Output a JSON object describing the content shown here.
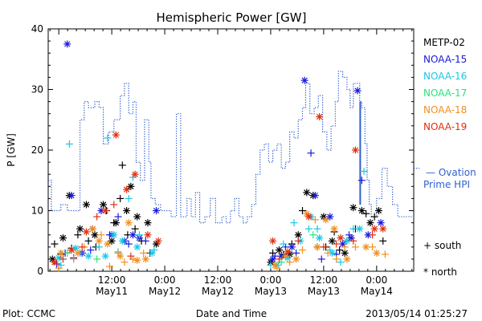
{
  "chart_data": {
    "type": "scatter",
    "title": "Hemispheric Power [GW]",
    "ylabel": "P [GW]",
    "xlabel": "Date and Time",
    "ylim": [
      0,
      40
    ],
    "xlim": [
      -0.1,
      3.35
    ],
    "yticks": [
      0,
      10,
      20,
      30,
      40
    ],
    "xticks": [
      {
        "x": 0.5,
        "time": "12:00",
        "date": "May11"
      },
      {
        "x": 1.0,
        "time": "0:00",
        "date": "May12"
      },
      {
        "x": 1.5,
        "time": "12:00",
        "date": "May12"
      },
      {
        "x": 2.0,
        "time": "0:00",
        "date": "May13"
      },
      {
        "x": 2.5,
        "time": "12:00",
        "date": "May13"
      },
      {
        "x": 3.0,
        "time": "0:00",
        "date": "May14"
      }
    ],
    "legend": {
      "placement": "right",
      "entries": [
        {
          "name": "METP-02",
          "color": "#000000"
        },
        {
          "name": "NOAA-15",
          "color": "#1a1adc"
        },
        {
          "name": "NOAA-16",
          "color": "#18c8e8"
        },
        {
          "name": "NOAA-17",
          "color": "#22e878"
        },
        {
          "name": "NOAA-18",
          "color": "#f09020"
        },
        {
          "name": "NOAA-19",
          "color": "#e03010"
        }
      ],
      "ovation_label_1": "— Ovation",
      "ovation_label_2": "Prime HPI",
      "ovation_color": "#3060d0",
      "south_label": "+ south",
      "north_label": "* north"
    },
    "ovation_series": {
      "name": "Ovation Prime HPI",
      "style": "dotted-step",
      "points": [
        [
          -0.1,
          15
        ],
        [
          -0.07,
          10
        ],
        [
          -0.02,
          10
        ],
        [
          0.02,
          11
        ],
        [
          0.08,
          10
        ],
        [
          0.16,
          10
        ],
        [
          0.2,
          25
        ],
        [
          0.24,
          28
        ],
        [
          0.28,
          27
        ],
        [
          0.34,
          28
        ],
        [
          0.38,
          27
        ],
        [
          0.42,
          21
        ],
        [
          0.47,
          23
        ],
        [
          0.52,
          25
        ],
        [
          0.58,
          29
        ],
        [
          0.62,
          31
        ],
        [
          0.66,
          26
        ],
        [
          0.7,
          28
        ],
        [
          0.73,
          18
        ],
        [
          0.77,
          15
        ],
        [
          0.81,
          25
        ],
        [
          0.85,
          18
        ],
        [
          0.87,
          12
        ],
        [
          0.91,
          11
        ],
        [
          0.96,
          10
        ],
        [
          1.0,
          10
        ],
        [
          1.06,
          9
        ],
        [
          1.11,
          26
        ],
        [
          1.15,
          9
        ],
        [
          1.21,
          12
        ],
        [
          1.25,
          9
        ],
        [
          1.29,
          13
        ],
        [
          1.33,
          8
        ],
        [
          1.38,
          9
        ],
        [
          1.43,
          12
        ],
        [
          1.48,
          8
        ],
        [
          1.54,
          9
        ],
        [
          1.58,
          8
        ],
        [
          1.62,
          10
        ],
        [
          1.66,
          12
        ],
        [
          1.7,
          9
        ],
        [
          1.74,
          8
        ],
        [
          1.78,
          9
        ],
        [
          1.82,
          11
        ],
        [
          1.86,
          16
        ],
        [
          1.9,
          20
        ],
        [
          1.94,
          21
        ],
        [
          1.98,
          18
        ],
        [
          2.02,
          20
        ],
        [
          2.06,
          21
        ],
        [
          2.1,
          17
        ],
        [
          2.14,
          18
        ],
        [
          2.18,
          23
        ],
        [
          2.22,
          22
        ],
        [
          2.26,
          25
        ],
        [
          2.3,
          27
        ],
        [
          2.33,
          31
        ],
        [
          2.37,
          26
        ],
        [
          2.41,
          27
        ],
        [
          2.45,
          29
        ],
        [
          2.49,
          23
        ],
        [
          2.53,
          20
        ],
        [
          2.57,
          24
        ],
        [
          2.61,
          28
        ],
        [
          2.64,
          33
        ],
        [
          2.68,
          32
        ],
        [
          2.72,
          30
        ],
        [
          2.75,
          27
        ],
        [
          2.78,
          31
        ],
        [
          2.82,
          31
        ],
        [
          2.84,
          28
        ],
        [
          2.86,
          27
        ],
        [
          2.89,
          21
        ],
        [
          2.91,
          15
        ],
        [
          2.93,
          11
        ],
        [
          2.95,
          9
        ],
        [
          3.0,
          12
        ],
        [
          3.05,
          17
        ],
        [
          3.1,
          14
        ],
        [
          3.15,
          11
        ],
        [
          3.2,
          9
        ]
      ],
      "spike": {
        "x": 2.845,
        "y_from": 11,
        "y_to": 28
      }
    },
    "series": [
      {
        "satellite": "METP-02",
        "color": "#000000",
        "south": [
          [
            -0.04,
            4.5
          ],
          [
            0.02,
            2.8
          ],
          [
            0.12,
            3.8
          ],
          [
            0.18,
            6
          ],
          [
            0.28,
            5
          ],
          [
            0.35,
            4
          ],
          [
            0.45,
            10
          ],
          [
            0.52,
            8
          ],
          [
            0.58,
            12
          ],
          [
            0.6,
            17.5
          ],
          [
            0.65,
            6
          ],
          [
            0.72,
            7
          ],
          [
            0.78,
            5
          ],
          [
            0.86,
            3
          ],
          [
            2.02,
            3
          ],
          [
            2.12,
            2.8
          ],
          [
            2.2,
            4.5
          ],
          [
            2.3,
            10
          ],
          [
            2.44,
            4
          ],
          [
            2.52,
            4
          ],
          [
            2.6,
            6.5
          ],
          [
            2.65,
            3.5
          ],
          [
            2.72,
            5
          ],
          [
            2.8,
            7
          ],
          [
            2.9,
            9.5
          ],
          [
            2.98,
            9
          ],
          [
            3.06,
            5
          ]
        ],
        "north": [
          [
            -0.06,
            2
          ],
          [
            0.04,
            5.5
          ],
          [
            0.1,
            12.5
          ],
          [
            0.2,
            7
          ],
          [
            0.26,
            11
          ],
          [
            0.34,
            6
          ],
          [
            0.42,
            11
          ],
          [
            0.5,
            5
          ],
          [
            0.54,
            8
          ],
          [
            0.64,
            10
          ],
          [
            0.68,
            14
          ],
          [
            0.74,
            9
          ],
          [
            0.84,
            8
          ],
          [
            0.92,
            4.5
          ],
          [
            2.0,
            1.5
          ],
          [
            2.08,
            3.5
          ],
          [
            2.18,
            2.8
          ],
          [
            2.26,
            6
          ],
          [
            2.34,
            13
          ],
          [
            2.4,
            12.5
          ],
          [
            2.5,
            9
          ],
          [
            2.58,
            5
          ],
          [
            2.7,
            3
          ],
          [
            2.78,
            10.5
          ],
          [
            2.86,
            10
          ],
          [
            2.94,
            8
          ],
          [
            3.02,
            10
          ]
        ]
      },
      {
        "satellite": "NOAA-15",
        "color": "#1a1adc",
        "south": [
          [
            -0.02,
            1.2
          ],
          [
            0.06,
            3
          ],
          [
            0.14,
            2.2
          ],
          [
            0.3,
            3.5
          ],
          [
            0.48,
            6
          ],
          [
            0.56,
            9
          ],
          [
            0.66,
            4.5
          ],
          [
            0.82,
            5
          ],
          [
            2.04,
            2.5
          ],
          [
            2.14,
            4
          ],
          [
            2.24,
            3
          ],
          [
            2.38,
            19.5
          ],
          [
            2.48,
            2
          ],
          [
            2.62,
            2.8
          ],
          [
            2.74,
            6
          ],
          [
            2.86,
            15
          ]
        ],
        "north": [
          [
            0.08,
            37.5
          ],
          [
            0.12,
            12.5
          ],
          [
            0.22,
            3
          ],
          [
            0.32,
            7
          ],
          [
            0.4,
            10
          ],
          [
            0.5,
            6
          ],
          [
            0.62,
            5
          ],
          [
            0.7,
            6
          ],
          [
            0.76,
            5.5
          ],
          [
            0.92,
            10
          ],
          [
            2.02,
            2
          ],
          [
            2.1,
            2.5
          ],
          [
            2.2,
            4
          ],
          [
            2.32,
            31.5
          ],
          [
            2.42,
            12.5
          ],
          [
            2.56,
            9
          ],
          [
            2.68,
            4.5
          ],
          [
            2.76,
            5.5
          ],
          [
            2.82,
            29.8
          ],
          [
            2.92,
            6
          ],
          [
            3.04,
            8
          ]
        ]
      },
      {
        "satellite": "NOAA-16",
        "color": "#18c8e8",
        "south": [
          [
            0.02,
            1
          ],
          [
            0.1,
            21
          ],
          [
            0.2,
            3
          ],
          [
            0.38,
            4
          ],
          [
            0.46,
            22
          ],
          [
            0.56,
            3.2
          ],
          [
            0.66,
            12
          ],
          [
            0.7,
            15.5
          ],
          [
            0.76,
            6
          ],
          [
            0.9,
            3.5
          ],
          [
            2.0,
            1
          ],
          [
            2.12,
            4.5
          ],
          [
            2.22,
            8
          ],
          [
            2.36,
            7
          ],
          [
            2.44,
            7
          ],
          [
            2.56,
            3.5
          ],
          [
            2.66,
            1.5
          ],
          [
            2.78,
            7
          ],
          [
            2.88,
            16.5
          ]
        ],
        "north": [
          [
            0.0,
            2.2
          ],
          [
            0.16,
            3.8
          ],
          [
            0.28,
            2.5
          ],
          [
            0.44,
            2.5
          ],
          [
            0.52,
            6
          ],
          [
            0.6,
            5
          ],
          [
            0.74,
            4
          ],
          [
            0.88,
            3
          ],
          [
            2.06,
            1
          ],
          [
            2.16,
            2.2
          ],
          [
            2.28,
            5
          ],
          [
            2.38,
            9
          ],
          [
            2.46,
            5.5
          ],
          [
            2.58,
            3
          ],
          [
            2.72,
            5
          ],
          [
            2.84,
            7
          ]
        ]
      },
      {
        "satellite": "NOAA-17",
        "color": "#22e878",
        "south": [
          [
            0.08,
            3
          ],
          [
            0.36,
            2
          ],
          [
            2.1,
            1.5
          ],
          [
            2.4,
            6
          ]
        ],
        "north": []
      },
      {
        "satellite": "NOAA-18",
        "color": "#f09020",
        "south": [
          [
            0.0,
            0.5
          ],
          [
            0.14,
            2
          ],
          [
            0.24,
            4
          ],
          [
            0.4,
            6
          ],
          [
            0.48,
            0.8
          ],
          [
            0.56,
            3
          ],
          [
            0.62,
            1.5
          ],
          [
            0.7,
            2
          ],
          [
            0.8,
            3
          ],
          [
            2.06,
            0.5
          ],
          [
            2.18,
            1.5
          ],
          [
            2.3,
            3.5
          ],
          [
            2.42,
            8.5
          ],
          [
            2.54,
            3
          ],
          [
            2.62,
            2
          ],
          [
            2.7,
            4
          ],
          [
            2.8,
            4
          ],
          [
            2.96,
            4
          ],
          [
            3.08,
            2.8
          ]
        ],
        "north": [
          [
            0.02,
            3
          ],
          [
            0.18,
            3
          ],
          [
            0.32,
            7
          ],
          [
            0.38,
            5
          ],
          [
            0.46,
            4.5
          ],
          [
            0.58,
            2.5
          ],
          [
            0.66,
            8
          ],
          [
            0.74,
            1.8
          ],
          [
            0.82,
            2
          ],
          [
            2.04,
            1
          ],
          [
            2.14,
            2.5
          ],
          [
            2.24,
            2
          ],
          [
            2.34,
            9.5
          ],
          [
            2.44,
            4
          ],
          [
            2.52,
            8.5
          ],
          [
            2.6,
            7
          ],
          [
            2.72,
            2
          ],
          [
            2.9,
            4
          ],
          [
            3.0,
            3
          ]
        ]
      },
      {
        "satellite": "NOAA-19",
        "color": "#e03010",
        "south": [
          [
            0.04,
            2
          ],
          [
            0.22,
            4
          ],
          [
            0.36,
            9
          ],
          [
            0.52,
            11
          ],
          [
            0.68,
            2.5
          ],
          [
            2.08,
            2
          ],
          [
            2.26,
            5
          ],
          [
            2.5,
            4
          ],
          [
            2.62,
            4.5
          ],
          [
            2.78,
            5
          ],
          [
            2.96,
            6
          ]
        ],
        "north": [
          [
            -0.04,
            1.5
          ],
          [
            0.12,
            3.5
          ],
          [
            0.26,
            6.5
          ],
          [
            0.44,
            10
          ],
          [
            0.54,
            22.5
          ],
          [
            0.64,
            13.5
          ],
          [
            0.72,
            16
          ],
          [
            0.84,
            6
          ],
          [
            0.94,
            5
          ],
          [
            2.02,
            5
          ],
          [
            2.16,
            3.2
          ],
          [
            2.36,
            9
          ],
          [
            2.46,
            25.5
          ],
          [
            2.66,
            5.5
          ],
          [
            2.8,
            20
          ],
          [
            2.98,
            7
          ],
          [
            3.06,
            7
          ]
        ]
      }
    ]
  },
  "footer": {
    "plot_credit": "Plot: CCMC",
    "timestamp": "2013/05/14 01:25:27"
  }
}
